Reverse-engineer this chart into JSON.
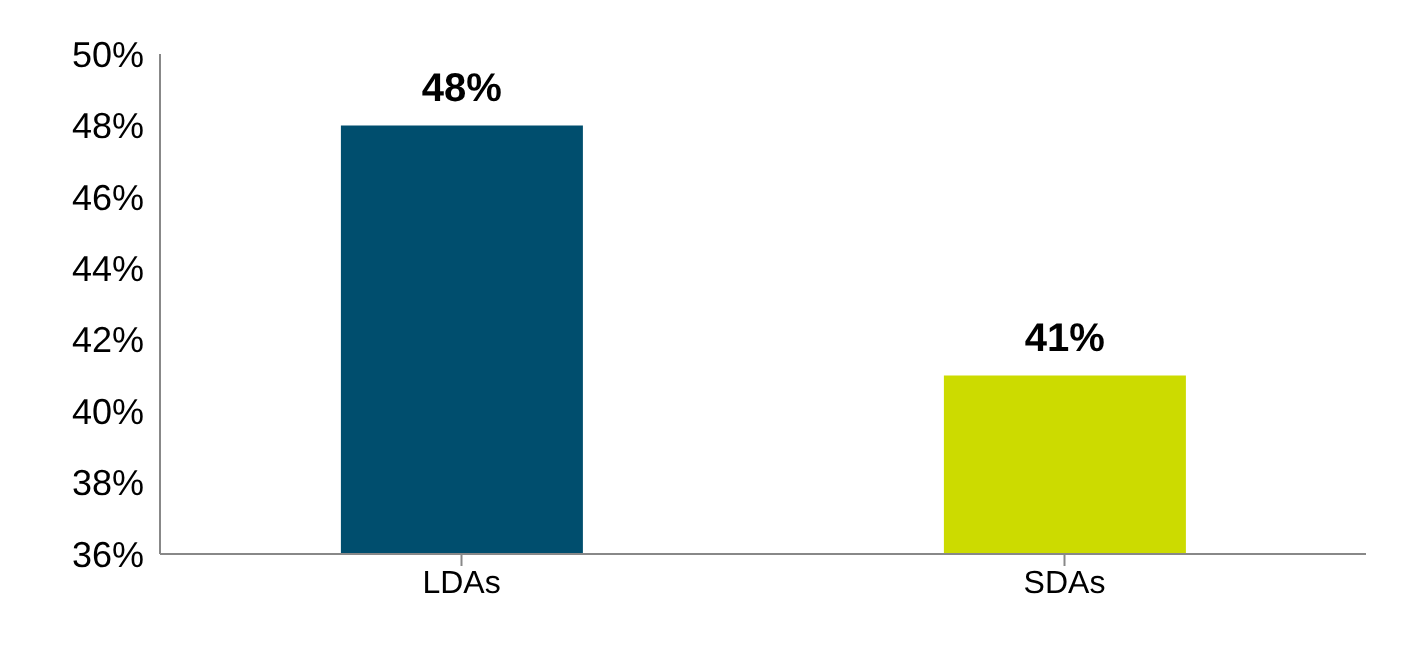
{
  "chart_data": {
    "type": "bar",
    "categories": [
      "LDAs",
      "SDAs"
    ],
    "values": [
      48,
      41
    ],
    "colors": [
      "#004e6e",
      "#ccdb00"
    ],
    "value_labels": [
      "48%",
      "41%"
    ],
    "ylim": [
      36,
      50
    ],
    "yticks": [
      {
        "value": 36,
        "label": "36%"
      },
      {
        "value": 38,
        "label": "38%"
      },
      {
        "value": 40,
        "label": "40%"
      },
      {
        "value": 42,
        "label": "42%"
      },
      {
        "value": 44,
        "label": "44%"
      },
      {
        "value": 46,
        "label": "46%"
      },
      {
        "value": 48,
        "label": "48%"
      },
      {
        "value": 50,
        "label": "50%"
      }
    ],
    "grid": false,
    "legend": false
  }
}
